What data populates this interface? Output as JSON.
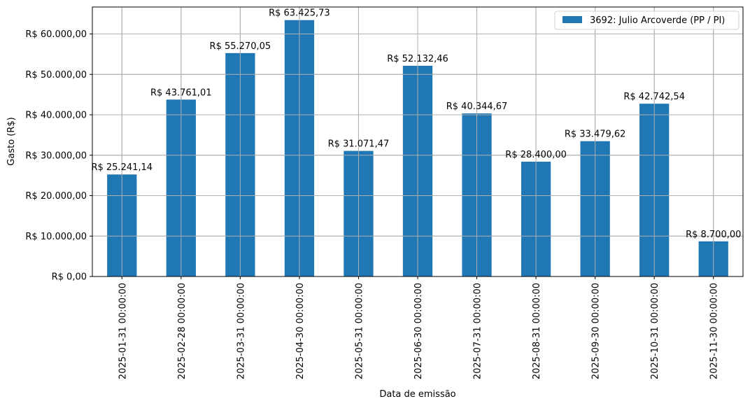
{
  "chart_data": {
    "type": "bar",
    "title": "",
    "xlabel": "Data de emissão",
    "ylabel": "Gasto (R$)",
    "ylim": [
      0,
      66750
    ],
    "grid": true,
    "legend_position": "upper right",
    "bar_color": "#1f77b4",
    "categories": [
      "2025-01-31 00:00:00",
      "2025-02-28 00:00:00",
      "2025-03-31 00:00:00",
      "2025-04-30 00:00:00",
      "2025-05-31 00:00:00",
      "2025-06-30 00:00:00",
      "2025-07-31 00:00:00",
      "2025-08-31 00:00:00",
      "2025-09-30 00:00:00",
      "2025-10-31 00:00:00",
      "2025-11-30 00:00:00"
    ],
    "series": [
      {
        "name": "3692: Julio Arcoverde (PP / PI)",
        "values": [
          25241.14,
          43761.01,
          55270.05,
          63425.73,
          31071.47,
          52132.46,
          40344.67,
          28400.0,
          33479.62,
          42742.54,
          8700.0
        ],
        "labels": [
          "R$ 25.241,14",
          "R$ 43.761,01",
          "R$ 55.270,05",
          "R$ 63.425,73",
          "R$ 31.071,47",
          "R$ 52.132,46",
          "R$ 40.344,67",
          "R$ 28.400,00",
          "R$ 33.479,62",
          "R$ 42.742,54",
          "R$ 8.700,00"
        ]
      }
    ],
    "yticks": [
      0,
      10000,
      20000,
      30000,
      40000,
      50000,
      60000
    ],
    "ytick_labels": [
      "R$ 0,00",
      "R$ 10.000,00",
      "R$ 20.000,00",
      "R$ 30.000,00",
      "R$ 40.000,00",
      "R$ 50.000,00",
      "R$ 60.000,00"
    ],
    "legend": [
      "3692: Julio Arcoverde (PP / PI)"
    ]
  }
}
